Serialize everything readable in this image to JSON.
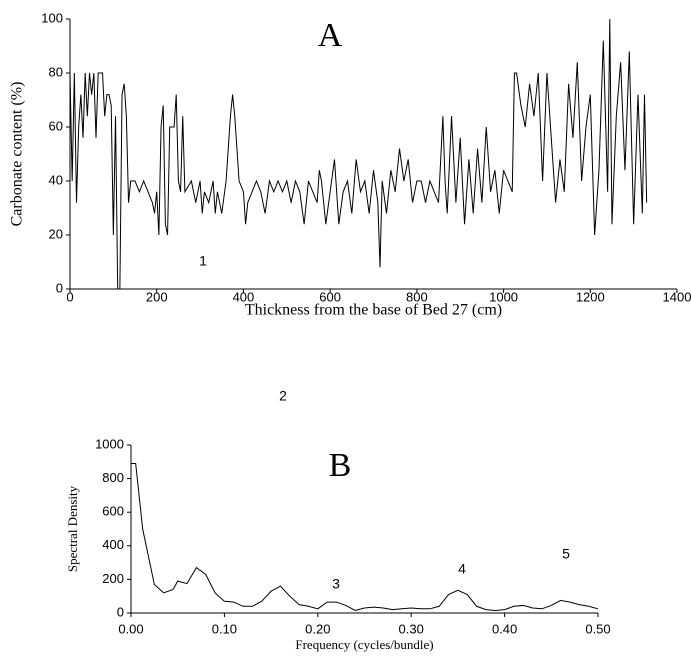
{
  "chart_data": [
    {
      "type": "line",
      "title": "A",
      "xlabel": "Thickness from the base of Bed 27 (cm)",
      "ylabel": "Carbonate content (%)",
      "xlim": [
        0,
        1400
      ],
      "ylim": [
        0,
        100
      ],
      "xticks": [
        0,
        200,
        400,
        600,
        800,
        1000,
        1200,
        1400
      ],
      "yticks": [
        0,
        20,
        40,
        60,
        80,
        100
      ],
      "color": "#000000",
      "x": [
        0,
        5,
        10,
        15,
        20,
        25,
        30,
        35,
        40,
        45,
        50,
        55,
        60,
        65,
        70,
        75,
        80,
        85,
        90,
        95,
        100,
        105,
        110,
        115,
        120,
        125,
        130,
        135,
        140,
        150,
        160,
        170,
        180,
        190,
        195,
        200,
        205,
        210,
        215,
        220,
        225,
        230,
        240,
        245,
        250,
        255,
        260,
        265,
        280,
        290,
        300,
        305,
        310,
        320,
        330,
        335,
        340,
        350,
        360,
        370,
        375,
        380,
        390,
        400,
        405,
        410,
        420,
        430,
        440,
        450,
        460,
        470,
        480,
        490,
        500,
        510,
        520,
        530,
        540,
        550,
        560,
        570,
        575,
        580,
        590,
        600,
        610,
        620,
        630,
        640,
        650,
        660,
        670,
        680,
        690,
        700,
        710,
        715,
        720,
        730,
        740,
        750,
        760,
        770,
        780,
        790,
        800,
        810,
        820,
        830,
        840,
        850,
        860,
        865,
        870,
        880,
        890,
        900,
        910,
        920,
        930,
        940,
        950,
        960,
        970,
        980,
        990,
        1000,
        1010,
        1020,
        1025,
        1030,
        1040,
        1050,
        1060,
        1070,
        1080,
        1090,
        1100,
        1110,
        1120,
        1130,
        1140,
        1150,
        1160,
        1170,
        1180,
        1190,
        1200,
        1210,
        1220,
        1230,
        1240,
        1245,
        1250,
        1260,
        1270,
        1280,
        1290,
        1300,
        1310,
        1320,
        1325,
        1330
      ],
      "values": [
        80,
        40,
        80,
        32,
        60,
        72,
        56,
        80,
        64,
        80,
        72,
        80,
        56,
        80,
        80,
        80,
        64,
        72,
        72,
        68,
        20,
        64,
        0,
        0,
        72,
        76,
        64,
        32,
        40,
        40,
        36,
        40,
        36,
        32,
        28,
        36,
        20,
        60,
        68,
        24,
        20,
        60,
        60,
        72,
        40,
        36,
        64,
        36,
        40,
        32,
        40,
        28,
        36,
        32,
        40,
        28,
        36,
        28,
        40,
        64,
        72,
        64,
        40,
        36,
        24,
        32,
        36,
        40,
        36,
        28,
        40,
        36,
        40,
        36,
        40,
        32,
        40,
        36,
        24,
        40,
        36,
        32,
        44,
        40,
        24,
        36,
        48,
        24,
        36,
        40,
        28,
        48,
        36,
        40,
        28,
        44,
        32,
        8,
        40,
        28,
        44,
        36,
        52,
        40,
        48,
        32,
        40,
        40,
        32,
        40,
        36,
        32,
        64,
        40,
        28,
        64,
        32,
        56,
        24,
        48,
        28,
        52,
        32,
        60,
        36,
        44,
        28,
        44,
        40,
        36,
        80,
        80,
        68,
        60,
        76,
        64,
        80,
        40,
        80,
        56,
        32,
        48,
        36,
        76,
        56,
        84,
        40,
        60,
        72,
        20,
        44,
        92,
        36,
        100,
        24,
        64,
        84,
        44,
        88,
        24,
        72,
        28,
        72,
        32
      ]
    },
    {
      "type": "line",
      "title": "B",
      "xlabel": "Frequency (cycles/bundle)",
      "ylabel": "Spectral Density",
      "xlim": [
        0,
        0.5
      ],
      "ylim": [
        0,
        1000
      ],
      "xticks": [
        {
          "value": 0,
          "label": "0.00"
        },
        {
          "value": 0.1,
          "label": "0.10"
        },
        {
          "value": 0.2,
          "label": "0.20"
        },
        {
          "value": 0.3,
          "label": "0.30"
        },
        {
          "value": 0.4,
          "label": "0.40"
        },
        {
          "value": 0.5,
          "label": "0.50"
        }
      ],
      "yticks": [
        0,
        200,
        400,
        600,
        800,
        1000
      ],
      "color": "#000000",
      "annotations": [
        "1",
        "2",
        "3",
        "4",
        "5"
      ],
      "x": [
        0,
        0.005,
        0.0125,
        0.025,
        0.035,
        0.045,
        0.05,
        0.06,
        0.07,
        0.08,
        0.09,
        0.1,
        0.11,
        0.12,
        0.13,
        0.14,
        0.15,
        0.16,
        0.17,
        0.18,
        0.19,
        0.2,
        0.21,
        0.22,
        0.23,
        0.24,
        0.25,
        0.26,
        0.27,
        0.28,
        0.29,
        0.3,
        0.31,
        0.32,
        0.33,
        0.34,
        0.35,
        0.36,
        0.37,
        0.38,
        0.39,
        0.4,
        0.41,
        0.42,
        0.43,
        0.44,
        0.45,
        0.46,
        0.47,
        0.48,
        0.49,
        0.5
      ],
      "values": [
        890,
        890,
        500,
        170,
        120,
        140,
        190,
        175,
        270,
        230,
        120,
        70,
        65,
        40,
        40,
        70,
        130,
        160,
        100,
        50,
        40,
        25,
        65,
        65,
        45,
        15,
        30,
        35,
        30,
        20,
        25,
        30,
        25,
        25,
        40,
        110,
        135,
        110,
        40,
        20,
        15,
        20,
        40,
        45,
        30,
        25,
        45,
        75,
        65,
        50,
        40,
        25
      ]
    }
  ]
}
